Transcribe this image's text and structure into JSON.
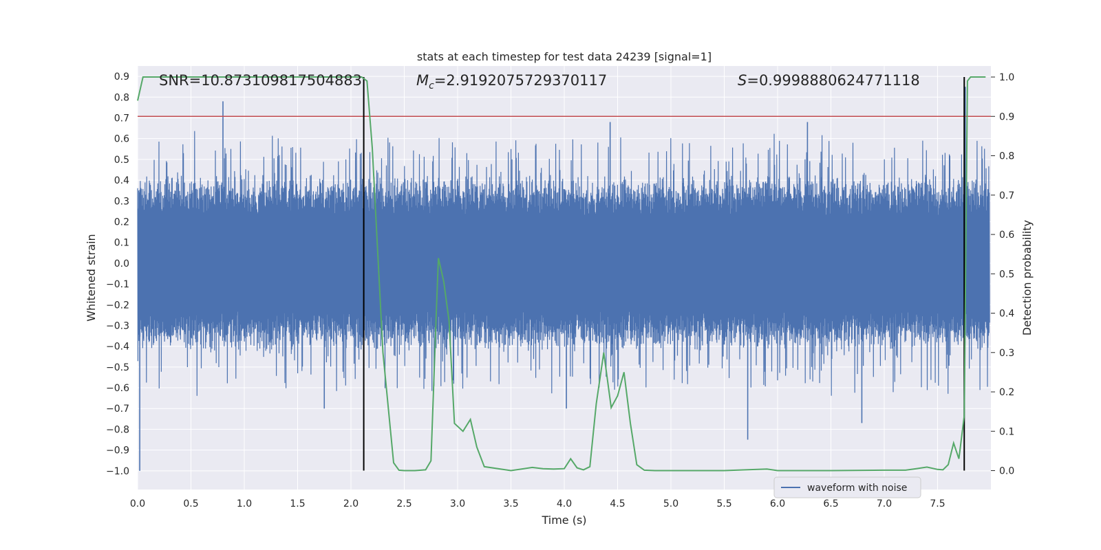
{
  "chart_data": {
    "type": "line",
    "title": "stats at each timestep for test data 24239 [signal=1]",
    "xlabel": "Time (s)",
    "ylabel": "Whitened strain",
    "y2label": "Detection probability",
    "xlim": [
      0.0,
      8.0
    ],
    "ylim": [
      -1.09,
      0.95
    ],
    "y2lim": [
      -0.048,
      1.028
    ],
    "xticks": [
      "0.0",
      "0.5",
      "1.0",
      "1.5",
      "2.0",
      "2.5",
      "3.0",
      "3.5",
      "4.0",
      "4.5",
      "5.0",
      "5.5",
      "6.0",
      "6.5",
      "7.0",
      "7.5"
    ],
    "yticks": [
      "0.9",
      "0.8",
      "0.7",
      "0.6",
      "0.5",
      "0.4",
      "0.3",
      "0.2",
      "0.1",
      "0.0",
      "−0.1",
      "−0.2",
      "−0.3",
      "−0.4",
      "−0.5",
      "−0.6",
      "−0.7",
      "−0.8",
      "−0.9",
      "−1.0"
    ],
    "y2ticks": [
      "1.0",
      "0.9",
      "0.8",
      "0.7",
      "0.6",
      "0.5",
      "0.4",
      "0.3",
      "0.2",
      "0.1",
      "0.0"
    ],
    "annotations": {
      "snr": "SNR=10.873109817504883",
      "mc_symbol": "M",
      "mc_sub": "c",
      "mc_value": "=2.9192075729370117",
      "s_symbol": "S",
      "s_value": "=0.9998880624771118"
    },
    "threshold": {
      "y2": 0.9,
      "color": "#c44e52"
    },
    "vlines": [
      2.12,
      7.75
    ],
    "legend": {
      "label": "waveform with noise",
      "location": "lower-right"
    },
    "series": [
      {
        "name": "waveform with noise",
        "axis": "left",
        "color": "#4c72b0",
        "description": "dense noisy strain samples, spans roughly -1.0 to 0.78",
        "spikes": [
          {
            "x": 0.02,
            "y": -1.0
          },
          {
            "x": 0.8,
            "y": 0.78
          },
          {
            "x": 4.43,
            "y": 0.68
          },
          {
            "x": 6.28,
            "y": 0.68
          },
          {
            "x": 7.76,
            "y": 0.85
          },
          {
            "x": 5.72,
            "y": -0.85
          },
          {
            "x": 4.02,
            "y": -0.7
          },
          {
            "x": 1.75,
            "y": -0.7
          },
          {
            "x": 6.79,
            "y": -0.77
          }
        ]
      },
      {
        "name": "detection probability",
        "axis": "right",
        "color": "#55a868",
        "x": [
          0.0,
          0.05,
          0.1,
          0.2,
          0.5,
          1.0,
          1.5,
          1.9,
          2.05,
          2.1,
          2.15,
          2.2,
          2.3,
          2.4,
          2.45,
          2.5,
          2.6,
          2.7,
          2.75,
          2.8,
          2.82,
          2.87,
          2.92,
          2.97,
          3.05,
          3.12,
          3.18,
          3.25,
          3.5,
          3.7,
          3.8,
          3.9,
          4.0,
          4.06,
          4.12,
          4.18,
          4.24,
          4.3,
          4.37,
          4.44,
          4.5,
          4.56,
          4.62,
          4.68,
          4.75,
          4.85,
          5.0,
          5.5,
          5.9,
          6.0,
          6.5,
          7.0,
          7.2,
          7.3,
          7.4,
          7.5,
          7.55,
          7.6,
          7.65,
          7.7,
          7.75,
          7.78,
          7.81,
          7.85,
          7.9,
          7.95
        ],
        "y": [
          0.94,
          1.0,
          1.0,
          1.0,
          1.0,
          1.0,
          1.0,
          1.0,
          1.0,
          1.0,
          0.99,
          0.82,
          0.3,
          0.02,
          0.001,
          0.0,
          0.0,
          0.002,
          0.025,
          0.4,
          0.54,
          0.48,
          0.38,
          0.12,
          0.1,
          0.13,
          0.06,
          0.01,
          0.0,
          0.008,
          0.005,
          0.004,
          0.005,
          0.03,
          0.007,
          0.002,
          0.01,
          0.17,
          0.3,
          0.16,
          0.19,
          0.25,
          0.12,
          0.015,
          0.001,
          0.0,
          0.0,
          0.0,
          0.004,
          0.0,
          0.0,
          0.001,
          0.001,
          0.005,
          0.009,
          0.003,
          0.002,
          0.015,
          0.07,
          0.03,
          0.14,
          0.99,
          1.0,
          1.0,
          1.0,
          1.0
        ]
      }
    ]
  }
}
